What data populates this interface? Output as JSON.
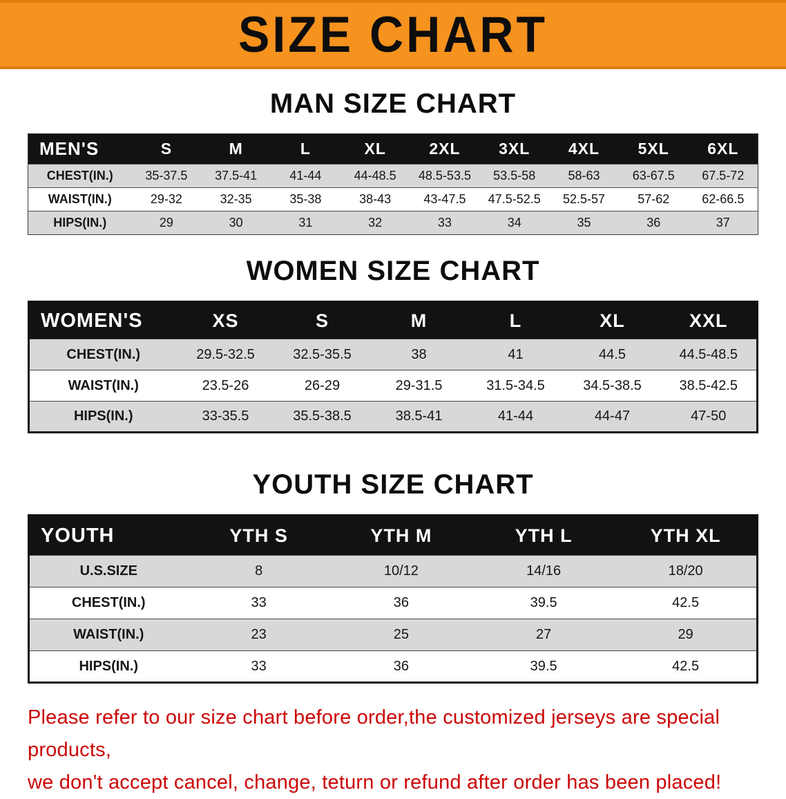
{
  "banner": {
    "title": "SIZE CHART",
    "bg_color": "#f6921e",
    "text_color": "#0d0d0d"
  },
  "colors": {
    "header_row_bg": "#121212",
    "header_row_text": "#ffffff",
    "stripe_row_bg": "#d8d8d8",
    "disclaimer_text": "#cc0505"
  },
  "sections": [
    {
      "heading": "MAN SIZE CHART",
      "table": {
        "header": [
          "MEN'S",
          "S",
          "M",
          "L",
          "XL",
          "2XL",
          "3XL",
          "4XL",
          "5XL",
          "6XL"
        ],
        "rows": [
          {
            "label": "CHEST(IN.)",
            "values": [
              "35-37.5",
              "37.5-41",
              "41-44",
              "44-48.5",
              "48.5-53.5",
              "53.5-58",
              "58-63",
              "63-67.5",
              "67.5-72"
            ]
          },
          {
            "label": "WAIST(IN.)",
            "values": [
              "29-32",
              "32-35",
              "35-38",
              "38-43",
              "43-47.5",
              "47.5-52.5",
              "52.5-57",
              "57-62",
              "62-66.5"
            ]
          },
          {
            "label": "HIPS(IN.)",
            "values": [
              "29",
              "30",
              "31",
              "32",
              "33",
              "34",
              "35",
              "36",
              "37"
            ]
          }
        ]
      }
    },
    {
      "heading": "WOMEN SIZE CHART",
      "table": {
        "header": [
          "WOMEN'S",
          "XS",
          "S",
          "M",
          "L",
          "XL",
          "XXL"
        ],
        "rows": [
          {
            "label": "CHEST(IN.)",
            "values": [
              "29.5-32.5",
              "32.5-35.5",
              "38",
              "41",
              "44.5",
              "44.5-48.5"
            ]
          },
          {
            "label": "WAIST(IN.)",
            "values": [
              "23.5-26",
              "26-29",
              "29-31.5",
              "31.5-34.5",
              "34.5-38.5",
              "38.5-42.5"
            ]
          },
          {
            "label": "HIPS(IN.)",
            "values": [
              "33-35.5",
              "35.5-38.5",
              "38.5-41",
              "41-44",
              "44-47",
              "47-50"
            ]
          }
        ]
      }
    },
    {
      "heading": "YOUTH SIZE CHART",
      "table": {
        "header": [
          "YOUTH",
          "YTH S",
          "YTH M",
          "YTH L",
          "YTH XL"
        ],
        "rows": [
          {
            "label": "U.S.SIZE",
            "values": [
              "8",
              "10/12",
              "14/16",
              "18/20"
            ]
          },
          {
            "label": "CHEST(IN.)",
            "values": [
              "33",
              "36",
              "39.5",
              "42.5"
            ]
          },
          {
            "label": "WAIST(IN.)",
            "values": [
              "23",
              "25",
              "27",
              "29"
            ]
          },
          {
            "label": "HIPS(IN.)",
            "values": [
              "33",
              "36",
              "39.5",
              "42.5"
            ]
          }
        ]
      }
    }
  ],
  "footer": {
    "line1": "Please refer to our size chart before order,the customized jerseys are special products,",
    "line2": "we don't accept cancel, change, teturn or refund after order has been placed!"
  }
}
